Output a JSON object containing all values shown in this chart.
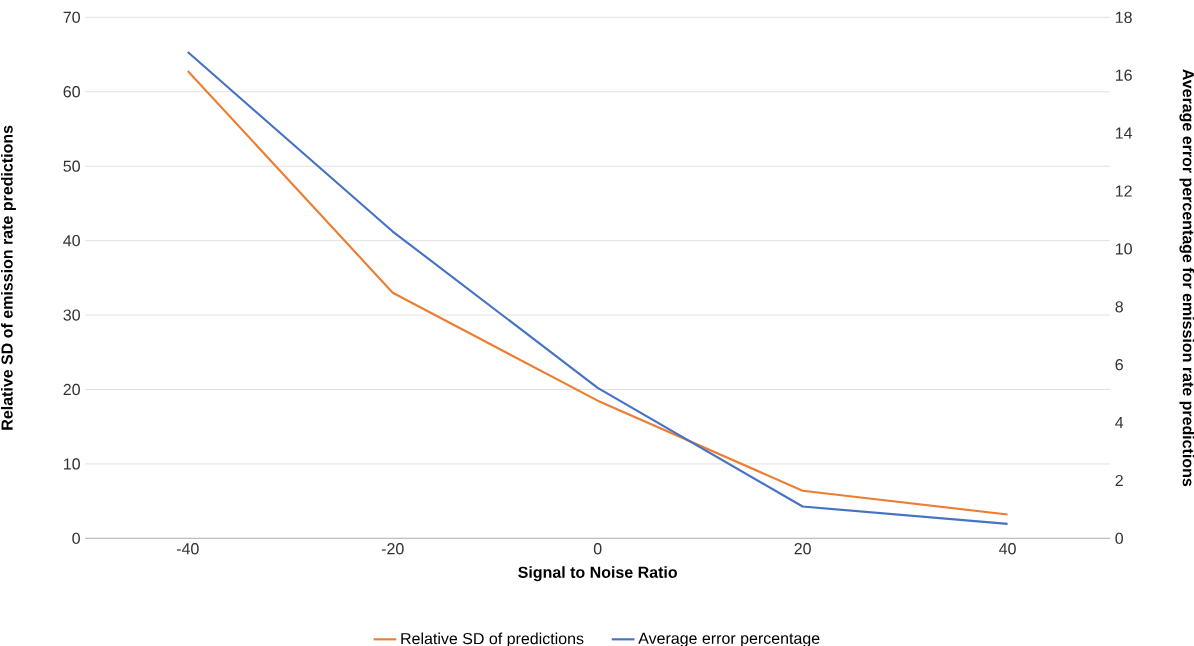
{
  "chart_data": {
    "type": "line",
    "x": [
      -40,
      -20,
      0,
      20,
      40
    ],
    "series": [
      {
        "name": "Relative SD of predictions",
        "color": "#ed7d31",
        "values": [
          62.8,
          33.0,
          18.5,
          6.4,
          3.2
        ]
      },
      {
        "name": "Average error percentage",
        "color": "#4472c4",
        "values": [
          16.8,
          10.6,
          5.2,
          1.1,
          0.5
        ],
        "axis": "y2"
      }
    ],
    "xlabel": "Signal to Noise Ratio",
    "ylabel": "Relative SD of emission rate predictions",
    "y2label": "Average error percentage for emission rate predictions",
    "xlim": [
      -50,
      50
    ],
    "xticks": [
      -40,
      -20,
      0,
      20,
      40
    ],
    "ylim": [
      0,
      70
    ],
    "yticks": [
      0,
      10,
      20,
      30,
      40,
      50,
      60,
      70
    ],
    "y2lim": [
      0,
      18
    ],
    "y2ticks": [
      0,
      2,
      4,
      6,
      8,
      10,
      12,
      14,
      16,
      18
    ],
    "grid": "y",
    "legend": "bottom",
    "marker": "none",
    "line_style": "solid"
  }
}
